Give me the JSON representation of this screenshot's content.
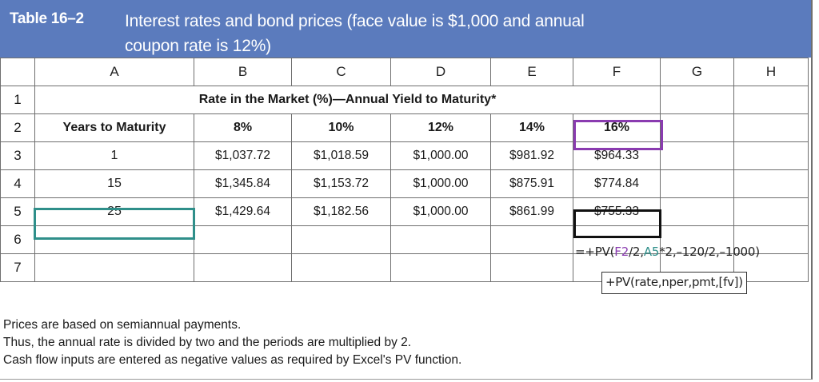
{
  "table": {
    "label": "Table 16–2",
    "title_line1": "Interest rates and bond prices (face value is $1,000 and annual",
    "title_line2": "coupon rate is 12%)"
  },
  "columns": [
    "A",
    "B",
    "C",
    "D",
    "E",
    "F",
    "G",
    "H"
  ],
  "rows": {
    "r1": {
      "num": "1",
      "header": "Rate in the Market (%)—Annual Yield to Maturity*"
    },
    "r2": {
      "num": "2",
      "A": "Years to Maturity",
      "B": "8%",
      "C": "10%",
      "D": "12%",
      "E": "14%",
      "F": "16%"
    },
    "r3": {
      "num": "3",
      "A": "1",
      "B": "$1,037.72",
      "C": "$1,018.59",
      "D": "$1,000.00",
      "E": "$981.92",
      "F": "$964.33"
    },
    "r4": {
      "num": "4",
      "A": "15",
      "B": "$1,345.84",
      "C": "$1,153.72",
      "D": "$1,000.00",
      "E": "$875.91",
      "F": "$774.84"
    },
    "r5": {
      "num": "5",
      "A": "25",
      "B": "$1,429.64",
      "C": "$1,182.56",
      "D": "$1,000.00",
      "E": "$861.99",
      "F": "$755.33"
    },
    "r6": {
      "num": "6"
    },
    "r7": {
      "num": "7"
    }
  },
  "formula": {
    "prefix": "=+PV(",
    "ref_rate": "F2",
    "part2": "/2,",
    "ref_years": "A5",
    "suffix": "*2,–120/2,–1000)"
  },
  "syntax": "+PV(rate,nper,pmt,[fv])",
  "notes": [
    "Prices are based on semiannual payments.",
    "Thus, the annual rate is divided by two and the periods are multiplied by 2.",
    "Cash flow inputs are entered as negative values as required by Excel's PV function."
  ],
  "colors": {
    "title_bg": "#5b7bbd",
    "highlight_rate": "#8a3bb0",
    "highlight_years": "#2f8f8a",
    "highlight_result": "#111111"
  }
}
